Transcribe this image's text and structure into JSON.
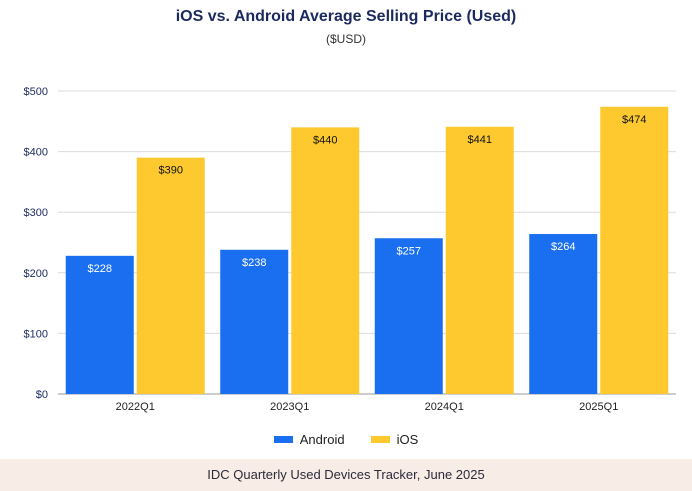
{
  "chart_data": {
    "type": "bar",
    "title": "iOS vs. Android Average Selling Price (Used)",
    "subtitle": "($USD)",
    "xlabel": "",
    "ylabel": "",
    "categories": [
      "2022Q1",
      "2023Q1",
      "2024Q1",
      "2025Q1"
    ],
    "series": [
      {
        "name": "Android",
        "color": "#1a6ef0",
        "values": [
          228,
          238,
          257,
          264
        ],
        "labels": [
          "$228",
          "$238",
          "$257",
          "$264"
        ]
      },
      {
        "name": "iOS",
        "color": "#fdc92f",
        "values": [
          390,
          440,
          441,
          474
        ],
        "labels": [
          "$390",
          "$440",
          "$441",
          "$474"
        ]
      }
    ],
    "ylim": [
      0,
      500
    ],
    "yticks": [
      0,
      100,
      200,
      300,
      400,
      500
    ],
    "ytick_labels": [
      "$0",
      "$100",
      "$200",
      "$300",
      "$400",
      "$500"
    ],
    "grid": true,
    "legend": "bottom-center"
  },
  "footer": "IDC Quarterly Used Devices Tracker, June 2025"
}
